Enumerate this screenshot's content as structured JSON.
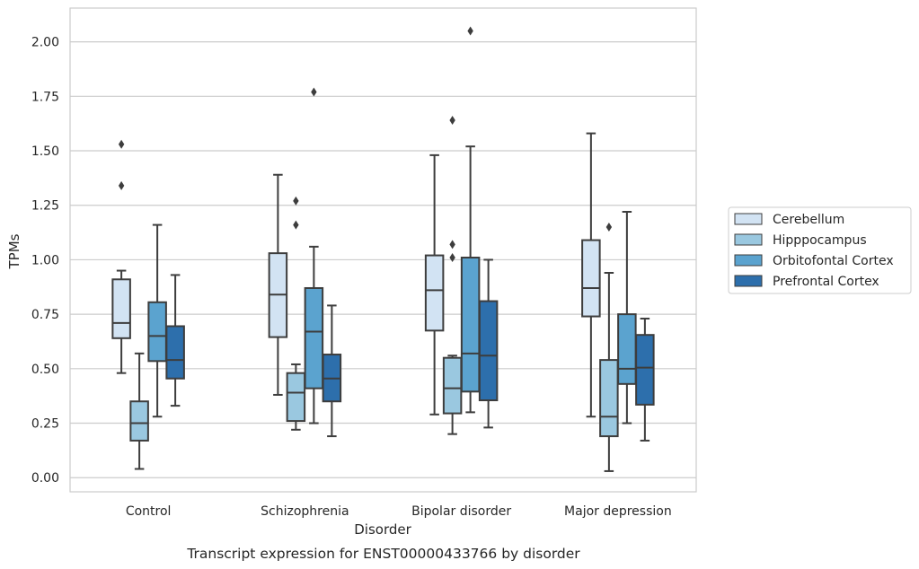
{
  "caption": "Transcript expression for ENST00000433766 by disorder",
  "chart_data": {
    "type": "box",
    "title": "",
    "xlabel": "Disorder",
    "ylabel": "TPMs",
    "ylim": [
      -0.065,
      2.155
    ],
    "yticks": [
      "0.00",
      "0.25",
      "0.50",
      "0.75",
      "1.00",
      "1.25",
      "1.50",
      "1.75",
      "2.00"
    ],
    "grid": "horizontal",
    "legend_position": "right",
    "categories": [
      "Control",
      "Schizophrenia",
      "Bipolar disorder",
      "Major depression"
    ],
    "series": [
      {
        "name": "Cerebellum",
        "color": "#d2e3f3",
        "boxes": [
          {
            "whisker_low": 0.48,
            "q1": 0.64,
            "median": 0.71,
            "q3": 0.91,
            "whisker_high": 0.95,
            "outliers": [
              1.34,
              1.53
            ]
          },
          {
            "whisker_low": 0.38,
            "q1": 0.645,
            "median": 0.84,
            "q3": 1.03,
            "whisker_high": 1.39,
            "outliers": []
          },
          {
            "whisker_low": 0.29,
            "q1": 0.675,
            "median": 0.86,
            "q3": 1.02,
            "whisker_high": 1.48,
            "outliers": []
          },
          {
            "whisker_low": 0.28,
            "q1": 0.74,
            "median": 0.87,
            "q3": 1.09,
            "whisker_high": 1.58,
            "outliers": []
          }
        ]
      },
      {
        "name": "Hipppocampus",
        "color": "#9ac8e0",
        "boxes": [
          {
            "whisker_low": 0.04,
            "q1": 0.17,
            "median": 0.25,
            "q3": 0.35,
            "whisker_high": 0.57,
            "outliers": []
          },
          {
            "whisker_low": 0.22,
            "q1": 0.26,
            "median": 0.39,
            "q3": 0.48,
            "whisker_high": 0.52,
            "outliers": [
              1.16,
              1.27
            ]
          },
          {
            "whisker_low": 0.2,
            "q1": 0.295,
            "median": 0.41,
            "q3": 0.55,
            "whisker_high": 0.56,
            "outliers": [
              1.01,
              1.07,
              1.64
            ]
          },
          {
            "whisker_low": 0.03,
            "q1": 0.19,
            "median": 0.28,
            "q3": 0.54,
            "whisker_high": 0.94,
            "outliers": [
              1.15
            ]
          }
        ]
      },
      {
        "name": "Orbitofontal Cortex",
        "color": "#5ba3cf",
        "boxes": [
          {
            "whisker_low": 0.28,
            "q1": 0.535,
            "median": 0.65,
            "q3": 0.805,
            "whisker_high": 1.16,
            "outliers": []
          },
          {
            "whisker_low": 0.25,
            "q1": 0.41,
            "median": 0.67,
            "q3": 0.87,
            "whisker_high": 1.06,
            "outliers": [
              1.77
            ]
          },
          {
            "whisker_low": 0.3,
            "q1": 0.395,
            "median": 0.57,
            "q3": 1.01,
            "whisker_high": 1.52,
            "outliers": [
              2.05
            ]
          },
          {
            "whisker_low": 0.25,
            "q1": 0.43,
            "median": 0.5,
            "q3": 0.75,
            "whisker_high": 1.22,
            "outliers": []
          }
        ]
      },
      {
        "name": "Prefrontal Cortex",
        "color": "#2d6fac",
        "boxes": [
          {
            "whisker_low": 0.33,
            "q1": 0.455,
            "median": 0.54,
            "q3": 0.695,
            "whisker_high": 0.93,
            "outliers": []
          },
          {
            "whisker_low": 0.19,
            "q1": 0.35,
            "median": 0.455,
            "q3": 0.565,
            "whisker_high": 0.79,
            "outliers": []
          },
          {
            "whisker_low": 0.23,
            "q1": 0.355,
            "median": 0.56,
            "q3": 0.81,
            "whisker_high": 1.0,
            "outliers": []
          },
          {
            "whisker_low": 0.17,
            "q1": 0.335,
            "median": 0.505,
            "q3": 0.655,
            "whisker_high": 0.73,
            "outliers": []
          }
        ]
      }
    ]
  }
}
